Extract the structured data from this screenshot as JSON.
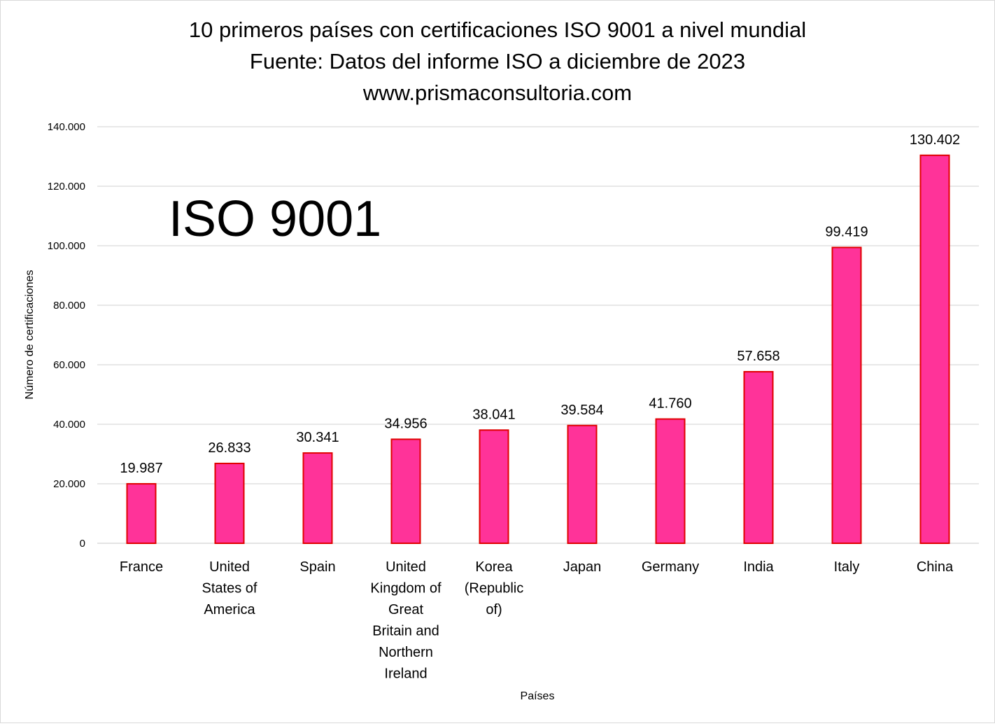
{
  "chart_data": {
    "type": "bar",
    "title_lines": [
      "10 primeros países con certificaciones ISO 9001 a nivel mundial",
      "Fuente: Datos del informe ISO  a diciembre de 2023",
      "www.prismaconsultoria.com"
    ],
    "annotation": "ISO 9001",
    "xlabel": "Países",
    "ylabel": "Número de certificaciones",
    "ylim": [
      0,
      140000
    ],
    "yticks": [
      0,
      20000,
      40000,
      60000,
      80000,
      100000,
      120000,
      140000
    ],
    "ytick_labels": [
      "0",
      "20.000",
      "40.000",
      "60.000",
      "80.000",
      "100.000",
      "120.000",
      "140.000"
    ],
    "grid": true,
    "legend": "none",
    "categories": [
      [
        "France"
      ],
      [
        "United",
        "States of",
        "America"
      ],
      [
        "Spain"
      ],
      [
        "United",
        "Kingdom of",
        "Great",
        "Britain and",
        "Northern",
        "Ireland"
      ],
      [
        "Korea",
        "(Republic",
        "of)"
      ],
      [
        "Japan"
      ],
      [
        "Germany"
      ],
      [
        "India"
      ],
      [
        "Italy"
      ],
      [
        "China"
      ]
    ],
    "values": [
      19987,
      26833,
      30341,
      34956,
      38041,
      39584,
      41760,
      57658,
      99419,
      130402
    ],
    "value_labels": [
      "19.987",
      "26.833",
      "30.341",
      "34.956",
      "38.041",
      "39.584",
      "41.760",
      "57.658",
      "99.419",
      "130.402"
    ],
    "colors": {
      "bar_fill": "#FF3399",
      "bar_stroke": "#E00000",
      "grid": "#D9D9D9"
    }
  }
}
